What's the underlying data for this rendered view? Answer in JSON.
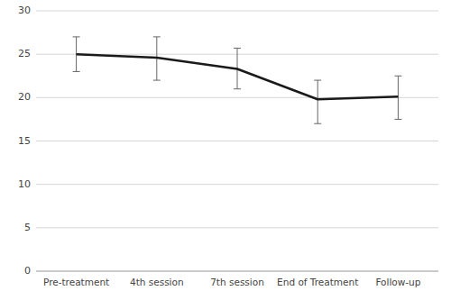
{
  "chart_data": {
    "type": "line",
    "categories": [
      "Pre-treatment",
      "4th session",
      "7th session",
      "End of Treatment",
      "Follow-up"
    ],
    "values": [
      25.0,
      24.6,
      23.3,
      19.8,
      20.1
    ],
    "ci_lower": [
      23.0,
      22.0,
      21.0,
      17.0,
      17.5
    ],
    "ci_upper": [
      27.0,
      27.0,
      25.7,
      22.0,
      22.5
    ],
    "color": "#1a1a1a",
    "ylim": [
      0,
      30
    ],
    "yticks": [
      0,
      5,
      10,
      15,
      20,
      25,
      30
    ],
    "grid": true
  }
}
